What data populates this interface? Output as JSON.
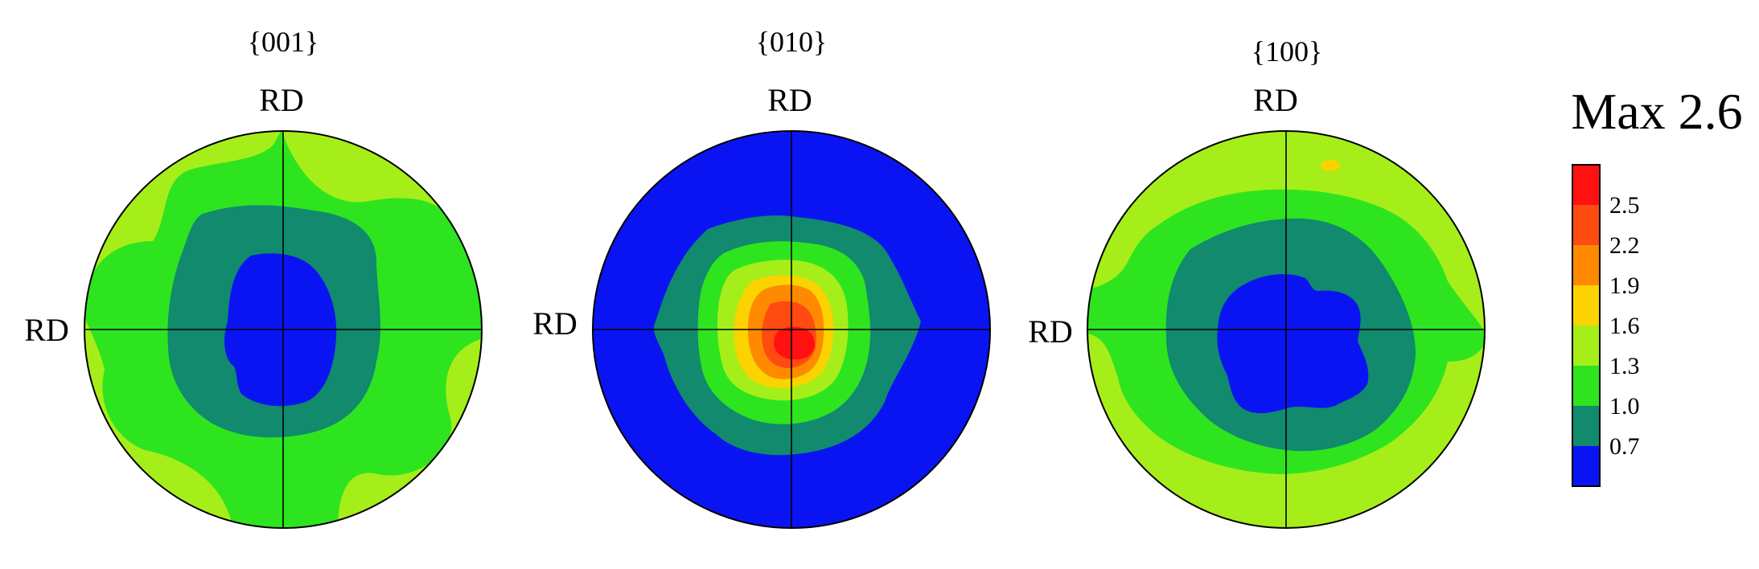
{
  "colors": {
    "c0_7": "#0a14f2",
    "c1_0": "#118a6d",
    "c1_3": "#2ee41f",
    "c1_6": "#a6ee1a",
    "c1_9": "#fbd300",
    "c2_2": "#ff8a00",
    "c2_5": "#ff4a12",
    "cmax": "#ff1111",
    "outline": "#000000"
  },
  "figures": [
    {
      "title": "{001}",
      "top_label": "RD",
      "left_label": "RD"
    },
    {
      "title": "{010}",
      "top_label": "RD",
      "left_label": "RD"
    },
    {
      "title": "{100}",
      "top_label": "RD",
      "left_label": "RD"
    }
  ],
  "legend": {
    "title": "Max 2.6",
    "levels": [
      "2.5",
      "2.2",
      "1.9",
      "1.6",
      "1.3",
      "1.0",
      "0.7"
    ]
  }
}
